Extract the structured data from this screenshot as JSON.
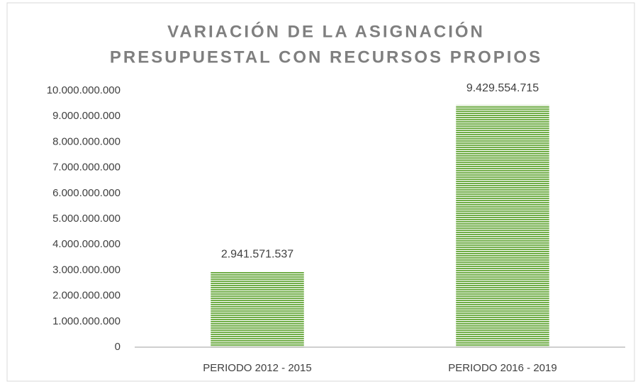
{
  "chart_data": {
    "type": "bar",
    "title": [
      "VARIACIÓN DE LA ASIGNACIÓN",
      "PRESUPUESTAL CON RECURSOS PROPIOS"
    ],
    "categories": [
      "PERIODO 2012 - 2015",
      "PERIODO 2016 - 2019"
    ],
    "values": [
      2941571537,
      9429554715
    ],
    "value_labels": [
      "2.941.571.537",
      "9.429.554.715"
    ],
    "color": "#70ad47",
    "ylim": [
      0,
      10000000000
    ],
    "yticks": [
      0,
      {
        "value": 1000000000,
        "label": "1.000.000.000"
      },
      {
        "value": 2000000000,
        "label": "2.000.000.000"
      },
      {
        "value": 3000000000,
        "label": "3.000.000.000"
      },
      {
        "value": 4000000000,
        "label": "4.000.000.000"
      },
      {
        "value": 5000000000,
        "label": "5.000.000.000"
      },
      {
        "value": 6000000000,
        "label": "6.000.000.000"
      },
      {
        "value": 7000000000,
        "label": "7.000.000.000"
      },
      {
        "value": 8000000000,
        "label": "8.000.000.000"
      },
      {
        "value": 9000000000,
        "label": "9.000.000.000"
      },
      {
        "value": 10000000000,
        "label": "10.000.000.000"
      }
    ],
    "grid": false
  }
}
